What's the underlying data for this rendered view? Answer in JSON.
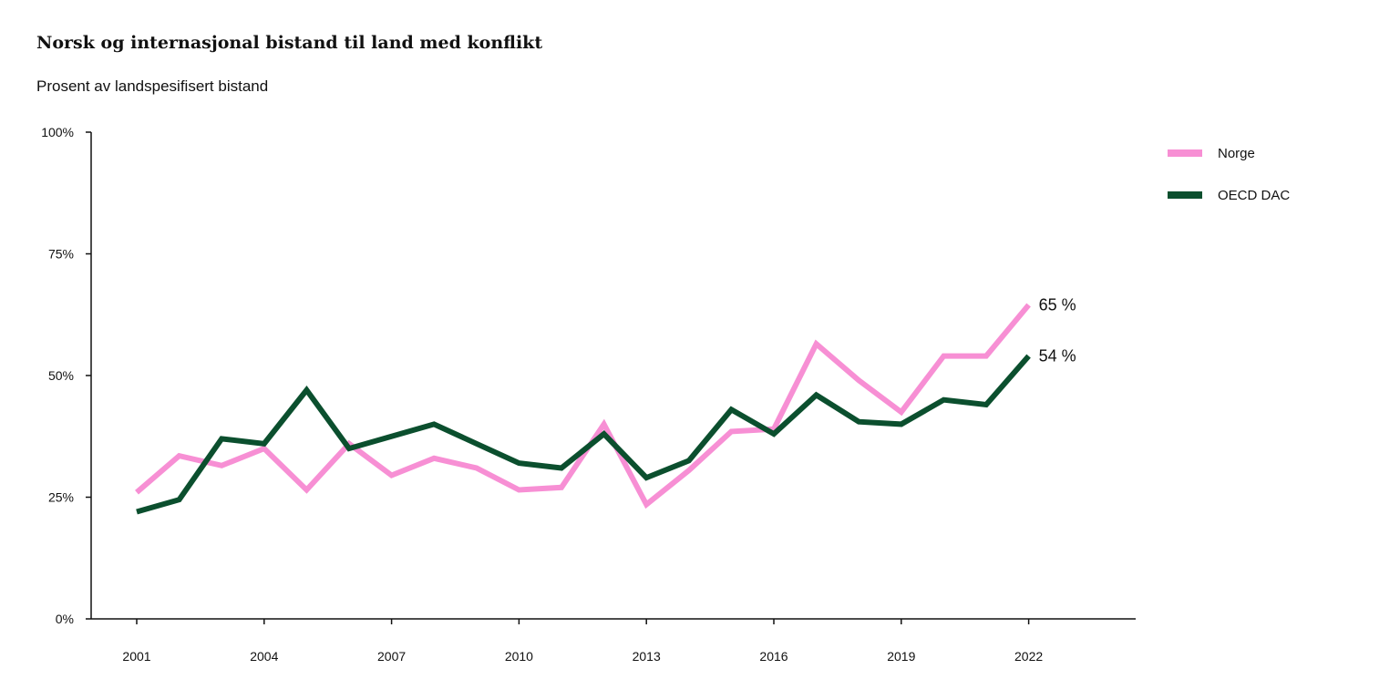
{
  "chart_data": {
    "type": "line",
    "title": "Norsk og internasjonal bistand til land med konflikt",
    "subtitle": "Prosent av landspesifisert bistand",
    "xlabel": "",
    "ylabel": "",
    "x": [
      2001,
      2002,
      2003,
      2004,
      2005,
      2006,
      2007,
      2008,
      2009,
      2010,
      2011,
      2012,
      2013,
      2014,
      2015,
      2016,
      2017,
      2018,
      2019,
      2020,
      2021,
      2022
    ],
    "x_tick_labels": [
      "2001",
      "2004",
      "2007",
      "2010",
      "2013",
      "2016",
      "2019",
      "2022"
    ],
    "y_tick_labels": [
      "0%",
      "25%",
      "50%",
      "75%",
      "100%"
    ],
    "ylim": [
      0,
      100
    ],
    "y_ticks": [
      0,
      25,
      50,
      75,
      100
    ],
    "grid": false,
    "legend_position": "top-right",
    "series": [
      {
        "name": "Norge",
        "color": "#f78fd4",
        "values": [
          26,
          33.5,
          31.5,
          35,
          26.5,
          36,
          29.5,
          33,
          31,
          26.5,
          27,
          40,
          23.5,
          30.5,
          38.5,
          39,
          56.5,
          49,
          42.5,
          54,
          54,
          64.5
        ],
        "end_label": "65 %"
      },
      {
        "name": "OECD DAC",
        "color": "#0b4f2e",
        "values": [
          22,
          24.5,
          37,
          36,
          47,
          35,
          37.5,
          40,
          36,
          32,
          31,
          38,
          29,
          32.5,
          43,
          38,
          46,
          40.5,
          40,
          45,
          44,
          54
        ],
        "end_label": "54 %"
      }
    ]
  }
}
